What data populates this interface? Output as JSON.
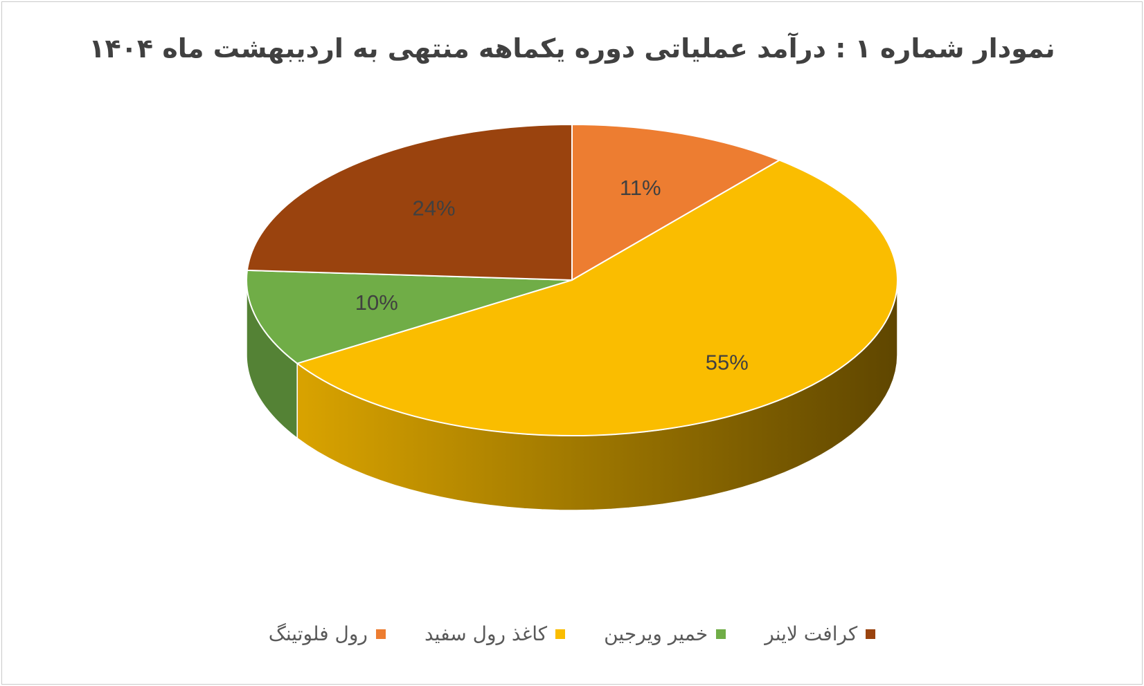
{
  "chart_data": {
    "type": "pie",
    "title": "نمودار شماره ۱ : درآمد عملیاتی دوره یکماهه منتهی به اردیبهشت ماه ۱۴۰۴",
    "categories": [
      "رول فلوتینگ",
      "کاغذ رول سفید",
      "خمیر ویرجین",
      "کرافت لاینر"
    ],
    "values": [
      11,
      55,
      10,
      24
    ],
    "labels": [
      "11%",
      "55%",
      "10%",
      "24%"
    ],
    "colors": [
      "#ED7D31",
      "#FABD00",
      "#70AD47",
      "#9A430E"
    ],
    "side_colors": [
      "#B35A1F",
      "#A27A00",
      "#548235",
      "#6B2F0A"
    ],
    "legend_position": "bottom"
  }
}
